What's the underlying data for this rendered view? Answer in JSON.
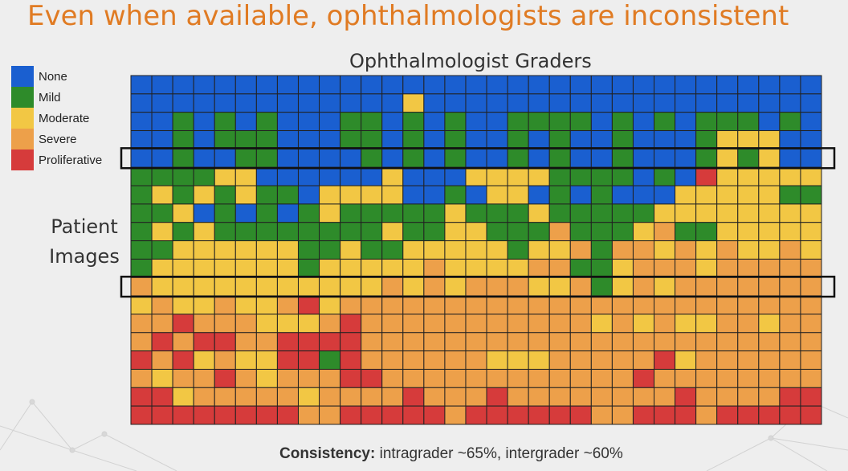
{
  "slide": {
    "title": "Even when available, ophthalmologists are inconsistent"
  },
  "colors": {
    "accent": "#e07b23",
    "none": "#1a5fd0",
    "mild": "#2e8b2a",
    "moderate": "#f2c744",
    "severe": "#eda04a",
    "proliferative": "#d63b3b"
  },
  "chart_data": {
    "type": "heatmap",
    "title": "Ophthalmologist Graders",
    "xlabel": "",
    "ylabel": "Patient Images",
    "legend": {
      "placement": "left",
      "items": [
        {
          "label": "None",
          "color": "#1a5fd0"
        },
        {
          "label": "Mild",
          "color": "#2e8b2a"
        },
        {
          "label": "Moderate",
          "color": "#f2c744"
        },
        {
          "label": "Severe",
          "color": "#eda04a"
        },
        {
          "label": "Proliferative",
          "color": "#d63b3b"
        }
      ]
    },
    "categories": [
      "None",
      "Mild",
      "Moderate",
      "Severe",
      "Proliferative"
    ],
    "n_graders": 33,
    "n_images": 19,
    "highlighted_rows": [
      4,
      11
    ],
    "grid": true,
    "rows": [
      "000000000000000000000000000000000",
      "000000000000020000000000000000000",
      "001010100011010100111101010111010",
      "001011100011010100101001000122200",
      "001001100001010100101001000121200",
      "111122000000200022221111010422222",
      "121212110222200102201010002222211",
      "112010101211111211121111122222222",
      "121211111111211221113111231122222",
      "112222221121122222122313323232232",
      "122222221222223222233112333233333",
      "322222222222323233322312323333333",
      "232232234233333333333333333333333",
      "334333222343333333333323232233233",
      "343443344443333333333333333333333",
      "434232244143333332223333342333333",
      "323343233344333333333333433333333",
      "442333332333343334333333334333344",
      "444444443344444344444433444344444"
    ]
  },
  "footer": {
    "label": "Consistency:",
    "text": " intragrader ~65%, intergrader ~60%"
  }
}
